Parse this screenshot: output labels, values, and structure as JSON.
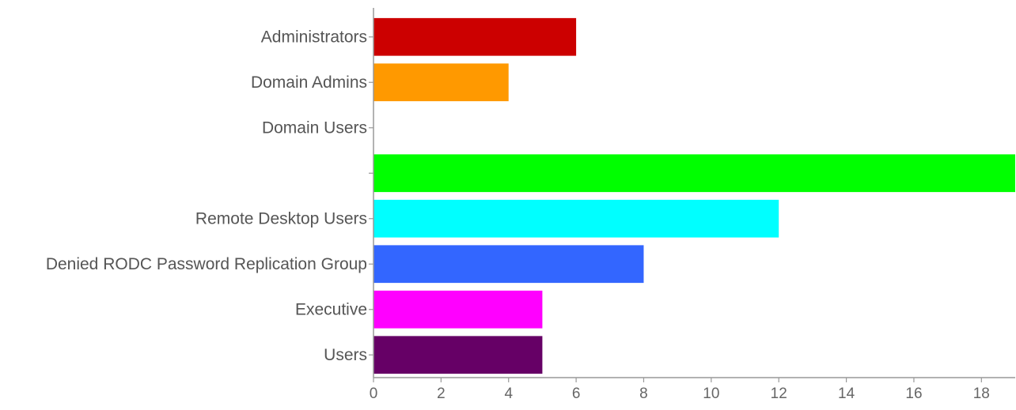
{
  "chart_data": {
    "type": "bar",
    "orientation": "horizontal",
    "categories": [
      "Administrators",
      "Domain Admins",
      "Domain Users",
      "",
      "Remote Desktop Users",
      "Denied RODC Password Replication Group",
      "Executive",
      "Users"
    ],
    "values": [
      6,
      4,
      0,
      19,
      12,
      8,
      5,
      5
    ],
    "colors": [
      "#cc0000",
      "#ff9900",
      "#cccccc",
      "#00ff00",
      "#00ffff",
      "#3366ff",
      "#ff00ff",
      "#660066"
    ],
    "xticks": [
      0,
      2,
      4,
      6,
      8,
      10,
      12,
      14,
      16,
      18
    ],
    "xlim": [
      0,
      19
    ],
    "title": "",
    "xlabel": "",
    "ylabel": "",
    "grid": false,
    "legend": "none"
  }
}
